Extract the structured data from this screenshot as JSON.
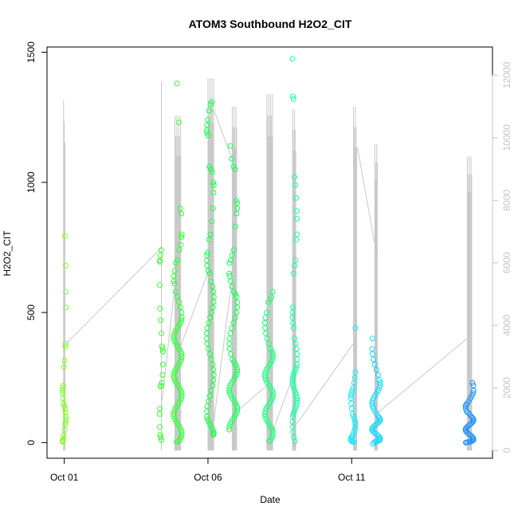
{
  "chart_data": {
    "type": "scatter",
    "title": "ATOM3 Southbound H2O2_CIT",
    "xlabel": "Date",
    "ylabel": "H2O2_CIT",
    "x_ticks": [
      {
        "day": 1,
        "label": "Oct 01"
      },
      {
        "day": 6,
        "label": "Oct 06"
      },
      {
        "day": 11,
        "label": "Oct 11"
      }
    ],
    "xlim_days": [
      0.4,
      15.9
    ],
    "ylim": [
      -60,
      1520
    ],
    "y_ticks": [
      0,
      500,
      1000,
      1500
    ],
    "y2_ticks": [
      0,
      2000,
      4000,
      6000,
      8000,
      10000,
      12000
    ],
    "y2lim": [
      -250,
      12900
    ],
    "grid": false,
    "legend": "none",
    "colors": {
      "gray_line": "#c8c8c8",
      "right_axis": "#c4c4c4"
    },
    "point_groups": [
      {
        "date": "Oct 01",
        "day_center": 1.0,
        "spread_days": 0.06,
        "color": "#7fff22",
        "values": [
          795,
          680,
          580,
          520,
          380,
          370,
          315,
          290,
          220,
          210,
          200,
          190,
          170,
          150,
          140,
          130,
          115,
          100,
          90,
          80,
          70,
          50,
          30,
          15,
          8,
          5,
          3
        ]
      },
      {
        "date": "Oct 04",
        "day_center": 4.38,
        "spread_days": 0.06,
        "color": "#3cff33",
        "values": [
          740,
          720,
          700,
          695,
          605,
          515,
          470,
          420,
          370,
          360,
          350,
          350,
          300,
          260,
          230,
          220,
          215,
          130,
          110,
          60,
          30,
          20,
          10
        ]
      },
      {
        "date": "Oct 04",
        "day_center": 4.95,
        "spread_days": 0.14,
        "color": "#2cff33",
        "values": [
          1380,
          1230,
          900,
          880,
          800,
          790,
          760,
          740,
          700,
          690,
          660,
          640,
          620,
          610,
          580,
          560,
          540,
          520,
          500,
          480,
          470,
          460,
          450,
          440,
          430,
          420,
          410,
          400,
          390,
          380,
          370,
          360,
          350,
          340,
          330,
          320,
          310,
          300,
          290,
          280,
          270,
          260,
          250,
          240,
          230,
          220,
          210,
          200,
          190,
          180,
          170,
          160,
          150,
          140,
          130,
          120,
          110,
          100,
          90,
          80,
          70,
          60,
          50,
          40,
          30,
          20,
          10,
          5,
          2
        ]
      },
      {
        "date": "Oct 06",
        "day_center": 6.08,
        "spread_days": 0.12,
        "color": "#19ff46",
        "values": [
          1310,
          1300,
          1275,
          1240,
          1220,
          1200,
          1190,
          1180,
          1060,
          1050,
          1040,
          1000,
          990,
          960,
          900,
          850,
          800,
          780,
          730,
          720,
          700,
          680,
          660,
          650,
          620,
          600,
          580,
          560,
          540,
          520,
          500,
          480,
          460,
          440,
          420,
          400,
          380,
          360,
          340,
          320,
          300,
          280,
          260,
          240,
          220,
          200,
          180,
          160,
          140,
          120,
          100,
          90,
          80,
          70,
          60,
          50,
          40,
          35,
          30
        ]
      },
      {
        "date": "Oct 06",
        "day_center": 6.88,
        "spread_days": 0.14,
        "color": "#19ff5a",
        "values": [
          1140,
          1090,
          1060,
          1050,
          930,
          920,
          900,
          880,
          830,
          740,
          720,
          700,
          690,
          650,
          640,
          620,
          600,
          580,
          570,
          560,
          540,
          520,
          500,
          480,
          460,
          440,
          420,
          400,
          380,
          360,
          340,
          320,
          310,
          300,
          290,
          280,
          270,
          260,
          250,
          240,
          230,
          220,
          210,
          200,
          190,
          180,
          170,
          160,
          150,
          140,
          130,
          120,
          110,
          100,
          90,
          80,
          70,
          60,
          50
        ]
      },
      {
        "date": "Oct 08",
        "day_center": 8.12,
        "spread_days": 0.14,
        "color": "#19ff7a",
        "values": [
          580,
          560,
          550,
          540,
          500,
          480,
          460,
          440,
          420,
          400,
          380,
          360,
          350,
          340,
          330,
          320,
          310,
          300,
          290,
          280,
          270,
          260,
          250,
          240,
          230,
          220,
          210,
          200,
          190,
          180,
          170,
          160,
          150,
          140,
          130,
          120,
          110,
          100,
          90,
          80,
          70,
          60,
          50,
          40,
          30,
          20,
          10,
          5
        ]
      },
      {
        "date": "Oct 09",
        "day_center": 9.02,
        "spread_days": 0.08,
        "color": "#19ffa0",
        "values": [
          1475,
          1330,
          1320,
          1020,
          990,
          940,
          890,
          860,
          800,
          780,
          700,
          680,
          650,
          520,
          500,
          480,
          460,
          440,
          400,
          380,
          360,
          340,
          320,
          300,
          290,
          280,
          270,
          260,
          250,
          240,
          230,
          220,
          210,
          200,
          190,
          180,
          170,
          160,
          150,
          140,
          130,
          120,
          110,
          100,
          80,
          60,
          40,
          20,
          5
        ]
      },
      {
        "date": "Oct 11",
        "day_center": 11.05,
        "spread_days": 0.08,
        "color": "#19e8ff",
        "values": [
          440,
          270,
          250,
          230,
          210,
          200,
          190,
          180,
          170,
          150,
          130,
          110,
          100,
          90,
          80,
          70,
          60,
          50,
          40,
          30,
          25,
          20,
          15,
          10,
          8,
          5,
          3,
          2
        ]
      },
      {
        "date": "Oct 12",
        "day_center": 11.85,
        "spread_days": 0.14,
        "color": "#19d6ff",
        "values": [
          400,
          360,
          340,
          320,
          300,
          280,
          260,
          240,
          230,
          220,
          210,
          200,
          190,
          180,
          170,
          160,
          150,
          140,
          130,
          120,
          110,
          100,
          95,
          90,
          85,
          80,
          75,
          70,
          65,
          60,
          55,
          50,
          45,
          40,
          35,
          30,
          25,
          20,
          15,
          10,
          8,
          5,
          3,
          2,
          -5
        ]
      },
      {
        "date": "Oct 15",
        "day_center": 15.1,
        "spread_days": 0.14,
        "color": "#1e90ff",
        "values": [
          230,
          220,
          200,
          190,
          180,
          170,
          160,
          150,
          145,
          140,
          130,
          120,
          115,
          110,
          100,
          95,
          90,
          85,
          80,
          75,
          70,
          65,
          60,
          55,
          50,
          45,
          40,
          35,
          30,
          25,
          20,
          15,
          10,
          8,
          5,
          3,
          2,
          1,
          0
        ]
      }
    ],
    "gray_spikes": [
      {
        "day": 1.0,
        "top": 11200,
        "count": 3
      },
      {
        "day": 4.38,
        "top": 11800,
        "count": 1
      },
      {
        "day": 4.95,
        "top": 10700,
        "count": 10
      },
      {
        "day": 6.1,
        "top": 11900,
        "count": 10
      },
      {
        "day": 6.92,
        "top": 11000,
        "count": 8
      },
      {
        "day": 8.15,
        "top": 11400,
        "count": 10
      },
      {
        "day": 9.0,
        "top": 10900,
        "count": 6
      },
      {
        "day": 11.12,
        "top": 11000,
        "count": 6
      },
      {
        "day": 11.85,
        "top": 9800,
        "count": 5
      },
      {
        "day": 15.1,
        "top": 9400,
        "count": 8
      }
    ],
    "gray_connectors": [
      [
        [
          1.05,
          3400
        ],
        [
          4.4,
          6500
        ]
      ],
      [
        [
          4.4,
          1600
        ],
        [
          5.0,
          6500
        ]
      ],
      [
        [
          5.0,
          3200
        ],
        [
          6.2,
          6200
        ]
      ],
      [
        [
          6.2,
          10900
        ],
        [
          6.85,
          9300
        ]
      ],
      [
        [
          6.2,
          900
        ],
        [
          6.95,
          6300
        ]
      ],
      [
        [
          6.95,
          1200
        ],
        [
          8.2,
          2200
        ]
      ],
      [
        [
          8.2,
          500
        ],
        [
          9.05,
          2600
        ]
      ],
      [
        [
          9.05,
          800
        ],
        [
          11.2,
          3600
        ]
      ],
      [
        [
          11.2,
          9700
        ],
        [
          11.9,
          6100
        ]
      ],
      [
        [
          11.9,
          1200
        ],
        [
          15.05,
          3600
        ]
      ]
    ]
  }
}
